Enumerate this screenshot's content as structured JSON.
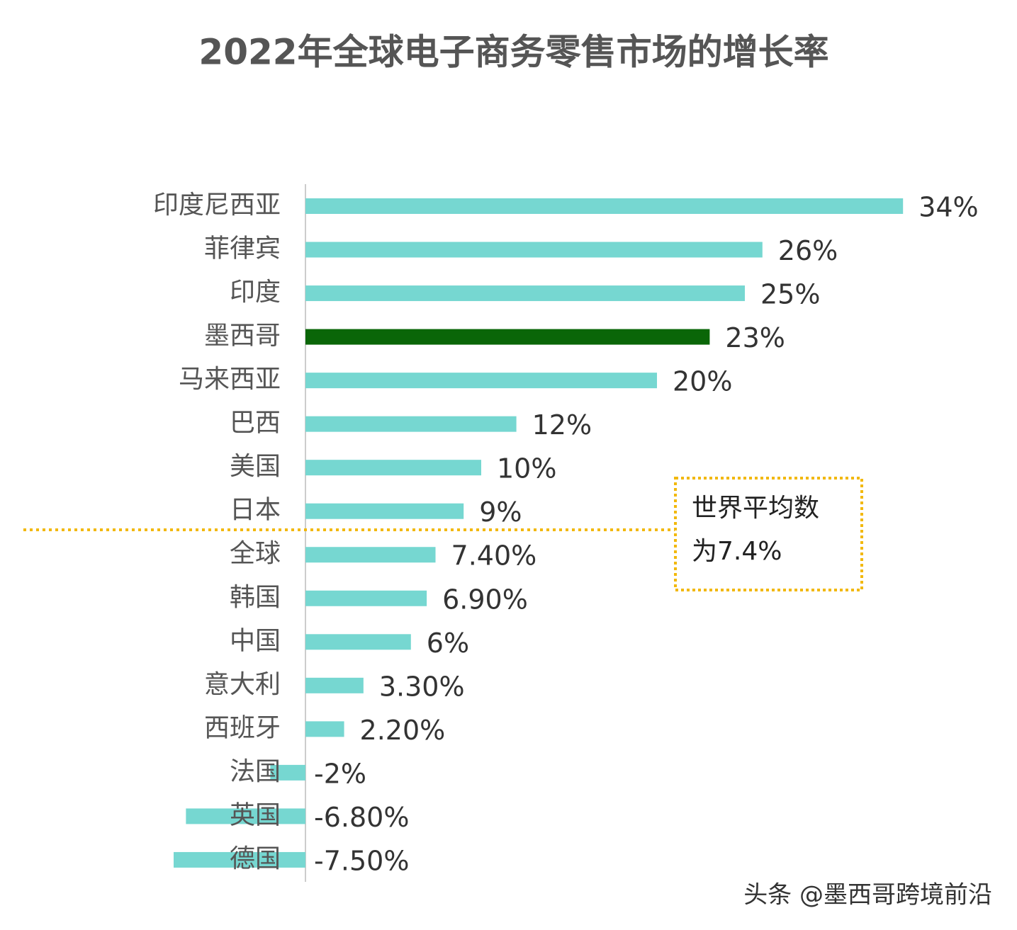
{
  "chart_data": {
    "type": "bar",
    "orientation": "horizontal",
    "title": "2022年全球电子商务零售市场的增长率",
    "categories": [
      "印度尼西亚",
      "菲律宾",
      "印度",
      "墨西哥",
      "马来西亚",
      "巴西",
      "美国",
      "日本",
      "全球",
      "韩国",
      "中国",
      "意大利",
      "西班牙",
      "法国",
      "英国",
      "德国"
    ],
    "values": [
      34,
      26,
      25,
      23,
      20,
      12,
      10,
      9,
      7.4,
      6.9,
      6,
      3.3,
      2.2,
      -2,
      -6.8,
      -7.5
    ],
    "value_labels": [
      "34%",
      "26%",
      "25%",
      "23%",
      "20%",
      "12%",
      "10%",
      "9%",
      "7.40%",
      "6.90%",
      "6%",
      "3.30%",
      "2.20%",
      "-2%",
      "-6.80%",
      "-7.50%"
    ],
    "colors": [
      "#76d7d1",
      "#76d7d1",
      "#76d7d1",
      "#0a6608",
      "#76d7d1",
      "#76d7d1",
      "#76d7d1",
      "#76d7d1",
      "#76d7d1",
      "#76d7d1",
      "#76d7d1",
      "#76d7d1",
      "#76d7d1",
      "#76d7d1",
      "#76d7d1",
      "#76d7d1"
    ],
    "xlim": [
      -10,
      40
    ],
    "annotation": [
      "世界平均数",
      "为7.4%"
    ],
    "watermark": "头条 @墨西哥跨境前沿"
  }
}
